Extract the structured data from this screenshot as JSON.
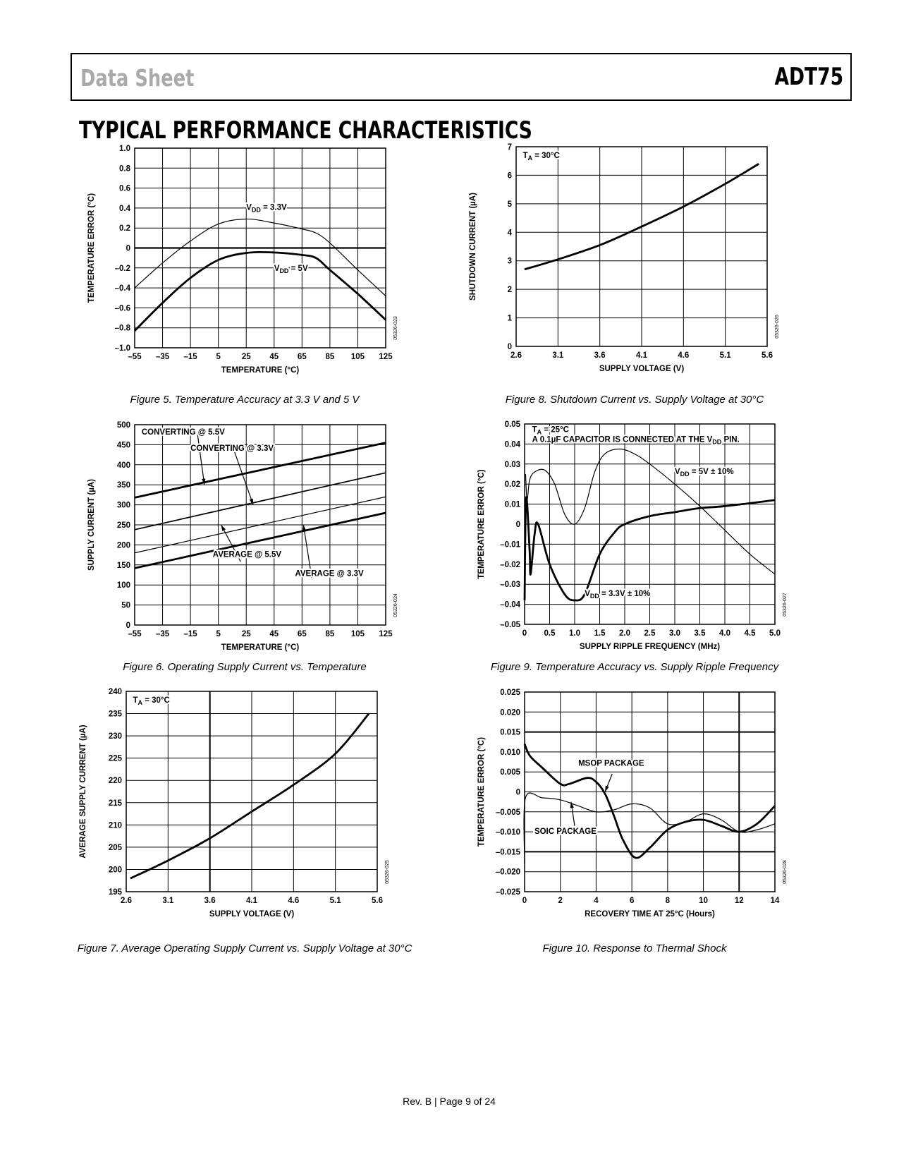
{
  "header": {
    "left": "Data Sheet",
    "right": "ADT75"
  },
  "section_title": "TYPICAL PERFORMANCE CHARACTERISTICS",
  "footer": "Rev. B | Page 9 of 24",
  "chart_data": [
    {
      "type": "line",
      "caption": "Figure 5. Temperature Accuracy at 3.3 V and 5 V",
      "code": "05326-023",
      "xlabel": "TEMPERATURE (°C)",
      "ylabel": "TEMPERATURE ERROR (°C)",
      "xlim": [
        -55,
        125
      ],
      "ylim": [
        -1.0,
        1.0
      ],
      "xticks": [
        "–55",
        "–35",
        "–15",
        "5",
        "25",
        "45",
        "65",
        "85",
        "105",
        "125"
      ],
      "yticks": [
        "–1.0",
        "–0.8",
        "–0.6",
        "–0.4",
        "–0.2",
        "0",
        "0.2",
        "0.4",
        "0.6",
        "0.8",
        "1.0"
      ],
      "grid": true,
      "series": [
        {
          "name": "VDD = 3.3V",
          "weight": "thin",
          "x": [
            -55,
            -35,
            -15,
            5,
            25,
            45,
            65,
            75,
            85,
            105,
            125
          ],
          "y": [
            -0.4,
            -0.15,
            0.07,
            0.24,
            0.29,
            0.25,
            0.19,
            0.15,
            0.05,
            -0.22,
            -0.48
          ]
        },
        {
          "name": "VDD = 5V",
          "weight": "thick",
          "x": [
            -55,
            -35,
            -15,
            5,
            25,
            45,
            65,
            75,
            85,
            105,
            125
          ],
          "y": [
            -0.83,
            -0.55,
            -0.3,
            -0.12,
            -0.05,
            -0.045,
            -0.07,
            -0.1,
            -0.22,
            -0.46,
            -0.72
          ]
        }
      ],
      "annotations": [
        {
          "main": "V",
          "sub": "DD",
          "rest": " = 3.3V"
        },
        {
          "main": "V",
          "sub": "DD",
          "rest": " = 5V"
        }
      ]
    },
    {
      "type": "line",
      "caption": "Figure 8. Shutdown Current vs. Supply Voltage at 30°C",
      "code": "05326-026",
      "xlabel": "SUPPLY VOLTAGE (V)",
      "ylabel": "SHUTDOWN CURRENT (µA)",
      "xlim": [
        2.6,
        5.6
      ],
      "ylim": [
        0,
        7
      ],
      "xticks": [
        "2.6",
        "3.1",
        "3.6",
        "4.1",
        "4.6",
        "5.1",
        "5.6"
      ],
      "yticks": [
        "0",
        "1",
        "2",
        "3",
        "4",
        "5",
        "6",
        "7"
      ],
      "grid": true,
      "series": [
        {
          "name": "TA = 30°C",
          "weight": "thick",
          "x": [
            2.7,
            3.1,
            3.6,
            4.1,
            4.6,
            5.1,
            5.5
          ],
          "y": [
            2.7,
            3.05,
            3.55,
            4.2,
            4.9,
            5.7,
            6.4
          ]
        }
      ],
      "annotations": [
        {
          "main": "T",
          "sub": "A",
          "rest": " = 30°C"
        }
      ]
    },
    {
      "type": "line",
      "caption": "Figure 6. Operating Supply Current vs. Temperature",
      "code": "05326-024",
      "xlabel": "TEMPERATURE (°C)",
      "ylabel": "SUPPLY CURRENT (µA)",
      "xlim": [
        -55,
        125
      ],
      "ylim": [
        0,
        500
      ],
      "xticks": [
        "–55",
        "–35",
        "–15",
        "5",
        "25",
        "45",
        "65",
        "85",
        "105",
        "125"
      ],
      "yticks": [
        "0",
        "50",
        "100",
        "150",
        "200",
        "250",
        "300",
        "350",
        "400",
        "450",
        "500"
      ],
      "grid": true,
      "series": [
        {
          "name": "CONVERTING @ 5.5V",
          "weight": "thick",
          "x": [
            -55,
            125
          ],
          "y": [
            318,
            455
          ]
        },
        {
          "name": "CONVERTING @ 3.3V",
          "weight": "mid",
          "x": [
            -55,
            125
          ],
          "y": [
            238,
            380
          ]
        },
        {
          "name": "AVERAGE @ 5.5V",
          "weight": "thin",
          "x": [
            -55,
            125
          ],
          "y": [
            180,
            320
          ]
        },
        {
          "name": "AVERAGE @ 3.3V",
          "weight": "thick",
          "x": [
            -55,
            125
          ],
          "y": [
            142,
            280
          ]
        }
      ],
      "annotations": [
        {
          "main": "CONVERTING @ 5.5V"
        },
        {
          "main": "CONVERTING @ 3.3V"
        },
        {
          "main": "AVERAGE @ 5.5V"
        },
        {
          "main": "AVERAGE @ 3.3V"
        }
      ]
    },
    {
      "type": "line",
      "caption": "Figure 9. Temperature Accuracy vs. Supply Ripple Frequency",
      "code": "05326-027",
      "xlabel": "SUPPLY RIPPLE FREQUENCY (MHz)",
      "ylabel": "TEMPERATURE ERROR (°C)",
      "xlim": [
        0,
        5.0
      ],
      "ylim": [
        -0.05,
        0.05
      ],
      "xticks": [
        "0",
        "0.5",
        "1.0",
        "1.5",
        "2.0",
        "2.5",
        "3.0",
        "3.5",
        "4.0",
        "4.5",
        "5.0"
      ],
      "yticks": [
        "–0.05",
        "–0.04",
        "–0.03",
        "–0.02",
        "–0.01",
        "0",
        "0.01",
        "0.02",
        "0.03",
        "0.04",
        "0.05"
      ],
      "grid": true,
      "series": [
        {
          "name": "VDD = 5V ± 10%",
          "weight": "thin",
          "x": [
            0.02,
            0.05,
            0.1,
            0.2,
            0.4,
            0.6,
            0.8,
            1.0,
            1.2,
            1.4,
            1.6,
            1.9,
            2.2,
            2.5,
            3.0,
            3.5,
            4.0,
            4.5,
            5.0
          ],
          "y": [
            0.025,
            0.012,
            0.022,
            0.026,
            0.027,
            0.02,
            0.005,
            0.0,
            0.008,
            0.026,
            0.035,
            0.0375,
            0.035,
            0.03,
            0.02,
            0.009,
            -0.003,
            -0.015,
            -0.025
          ]
        },
        {
          "name": "VDD = 3.3V ± 10%",
          "weight": "thick",
          "x": [
            0.0,
            0.03,
            0.1,
            0.12,
            0.2,
            0.27,
            0.5,
            0.8,
            1.0,
            1.2,
            1.5,
            1.8,
            2.0,
            2.5,
            3.0,
            3.5,
            4.0,
            5.0
          ],
          "y": [
            -0.038,
            0.013,
            -0.013,
            -0.025,
            -0.005,
            0.0,
            -0.02,
            -0.035,
            -0.038,
            -0.035,
            -0.015,
            -0.004,
            0.0,
            0.004,
            0.006,
            0.008,
            0.009,
            0.012
          ]
        }
      ],
      "annotations": [
        {
          "main": "T",
          "sub": "A",
          "rest": " = 25°C"
        },
        {
          "main": "A 0.1µF CAPACITOR IS CONNECTED AT THE V",
          "sub": "DD",
          "rest": " PIN."
        },
        {
          "main": "V",
          "sub": "DD",
          "rest": " = 5V ± 10%"
        },
        {
          "main": "V",
          "sub": "DD",
          "rest": " = 3.3V ± 10%"
        }
      ]
    },
    {
      "type": "line",
      "caption": "Figure 7. Average Operating Supply Current vs. Supply Voltage at 30°C",
      "code": "05326-025",
      "xlabel": "SUPPLY VOLTAGE (V)",
      "ylabel": "AVERAGE SUPPLY CURRENT (µA)",
      "xlim": [
        2.6,
        5.6
      ],
      "ylim": [
        195,
        240
      ],
      "xticks": [
        "2.6",
        "3.1",
        "3.6",
        "4.1",
        "4.6",
        "5.1",
        "5.6"
      ],
      "yticks": [
        "195",
        "200",
        "205",
        "210",
        "215",
        "220",
        "225",
        "230",
        "235",
        "240"
      ],
      "grid": true,
      "series": [
        {
          "name": "TA = 30°C",
          "weight": "thick",
          "x": [
            2.65,
            3.1,
            3.6,
            4.1,
            4.6,
            5.1,
            5.5
          ],
          "y": [
            198,
            202,
            207,
            213,
            219,
            226,
            235
          ]
        }
      ],
      "annotations": [
        {
          "main": "T",
          "sub": "A",
          "rest": " = 30°C"
        }
      ]
    },
    {
      "type": "line",
      "caption": "Figure 10. Response to Thermal Shock",
      "code": "05326-028",
      "xlabel": "RECOVERY TIME AT 25°C (Hours)",
      "ylabel": "TEMPERATURE ERROR (°C)",
      "xlim": [
        0,
        14
      ],
      "ylim": [
        -0.025,
        0.025
      ],
      "xticks": [
        "0",
        "2",
        "4",
        "6",
        "8",
        "10",
        "12",
        "14"
      ],
      "yticks": [
        "–0.025",
        "–0.020",
        "–0.015",
        "–0.010",
        "–0.005",
        "0",
        "0.005",
        "0.010",
        "0.015",
        "0.020",
        "0.025"
      ],
      "grid": true,
      "series": [
        {
          "name": "MSOP PACKAGE",
          "weight": "thick",
          "x": [
            0,
            0.3,
            1,
            2,
            2.5,
            3.5,
            4,
            4.5,
            5,
            5.5,
            6.2,
            7,
            8,
            9,
            10,
            11,
            12,
            13,
            14
          ],
          "y": [
            0.012,
            0.009,
            0.006,
            0.002,
            0.002,
            0.0035,
            0.0025,
            -0.0005,
            -0.006,
            -0.012,
            -0.0165,
            -0.014,
            -0.0095,
            -0.0075,
            -0.007,
            -0.0085,
            -0.01,
            -0.008,
            -0.0035
          ]
        },
        {
          "name": "SOIC PACKAGE",
          "weight": "thin",
          "x": [
            0,
            0.05,
            1,
            2,
            3,
            4,
            5,
            6,
            7,
            8,
            9,
            10,
            11,
            12,
            13,
            14
          ],
          "y": [
            -0.018,
            -0.0015,
            -0.0015,
            -0.002,
            -0.0035,
            -0.005,
            -0.0045,
            -0.003,
            -0.004,
            -0.008,
            -0.0075,
            -0.0055,
            -0.007,
            -0.01,
            -0.0095,
            -0.008
          ]
        }
      ],
      "annotations": [
        {
          "main": "MSOP PACKAGE"
        },
        {
          "main": "SOIC PACKAGE"
        }
      ]
    }
  ]
}
